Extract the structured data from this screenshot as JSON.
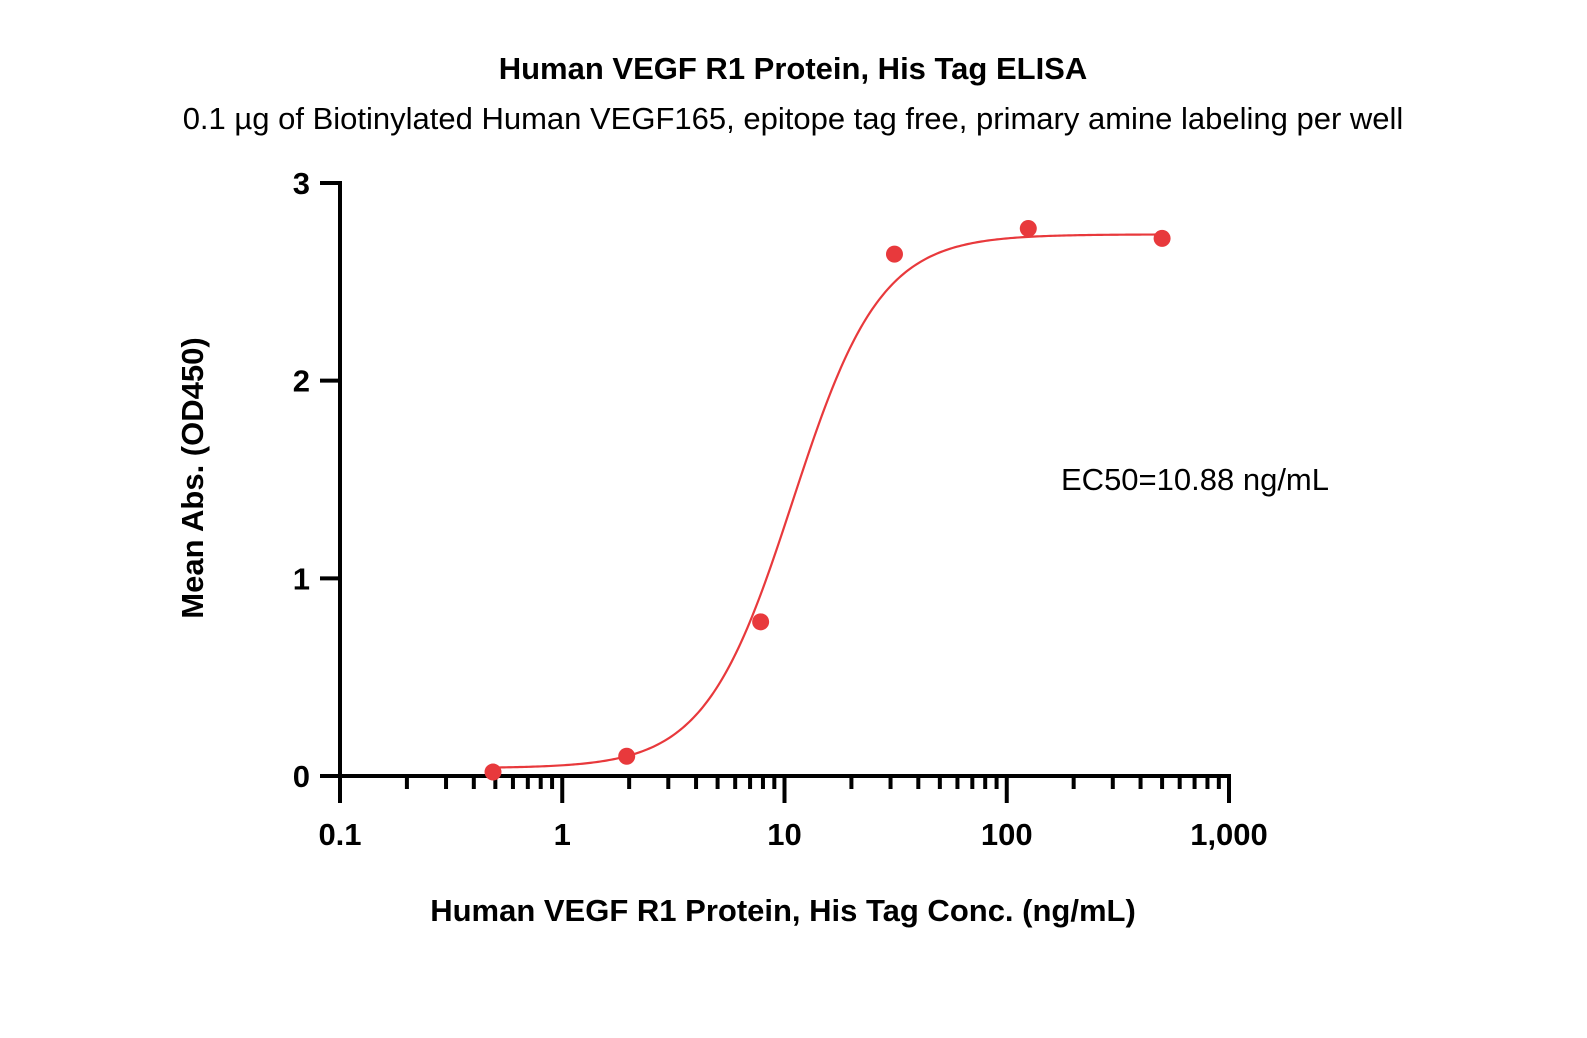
{
  "chart_data": {
    "type": "scatter",
    "title": "Human VEGF R1 Protein, His Tag ELISA",
    "subtitle": "0.1 µg of Biotinylated Human VEGF165, epitope tag free, primary amine labeling per well",
    "xlabel": "Human VEGF R1 Protein, His Tag Conc. (ng/mL)",
    "ylabel": "Mean Abs. (OD450)",
    "x_scale": "log",
    "xlim": [
      0.1,
      1000
    ],
    "ylim": [
      0,
      3
    ],
    "x_ticks": [
      0.1,
      1,
      10,
      100,
      1000
    ],
    "x_tick_labels": [
      "0.1",
      "1",
      "10",
      "100",
      "1,000"
    ],
    "y_ticks": [
      0,
      1,
      2,
      3
    ],
    "y_tick_labels": [
      "0",
      "1",
      "2",
      "3"
    ],
    "grid": false,
    "series": [
      {
        "x": [
          0.488,
          1.95,
          7.81,
          31.25,
          125,
          500
        ],
        "y": [
          0.02,
          0.1,
          0.78,
          2.64,
          2.77,
          2.72
        ],
        "color": "#e8393c",
        "fit": {
          "model": "4PL",
          "bottom": 0.04,
          "top": 2.74,
          "ec50": 10.88,
          "hill": 2.2
        }
      }
    ],
    "annotations": [
      {
        "text": "EC50=10.88 ng/mL"
      }
    ]
  }
}
